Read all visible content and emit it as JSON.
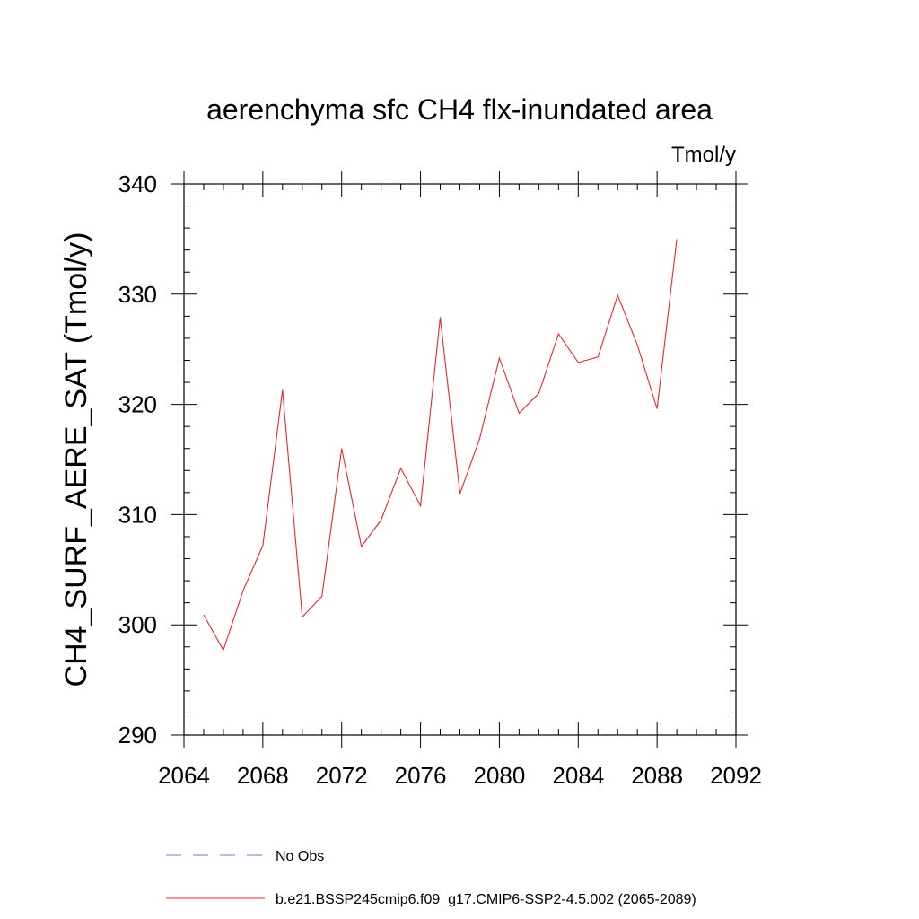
{
  "chart_data": {
    "type": "line",
    "title": "aerenchyma sfc CH4 flx-inundated area",
    "units_label": "Tmol/y",
    "xlabel": "",
    "ylabel": "CH4_SURF_AERE_SAT  (Tmol/y)",
    "xlim": [
      2064,
      2092
    ],
    "ylim": [
      290,
      340
    ],
    "x_ticks": [
      2064,
      2068,
      2072,
      2076,
      2080,
      2084,
      2088,
      2092
    ],
    "y_ticks": [
      290,
      300,
      310,
      320,
      330,
      340
    ],
    "x_minor_step": 1,
    "y_minor_step": 2,
    "grid": false,
    "legend_position": "bottom",
    "series": [
      {
        "name": "b.e21.BSSP245cmip6.f09_g17.CMIP6-SSP2-4.5.002 (2065-2089)",
        "color": "#e8262a",
        "style": "solid",
        "x": [
          2065,
          2066,
          2067,
          2068,
          2069,
          2070,
          2071,
          2072,
          2073,
          2074,
          2075,
          2076,
          2077,
          2078,
          2079,
          2080,
          2081,
          2082,
          2083,
          2084,
          2085,
          2086,
          2087,
          2088,
          2089
        ],
        "values": [
          300.9,
          297.7,
          303.1,
          307.2,
          321.3,
          300.7,
          302.6,
          316.0,
          307.1,
          309.5,
          314.2,
          310.8,
          327.9,
          311.9,
          316.9,
          324.2,
          319.2,
          321.0,
          326.4,
          323.8,
          324.3,
          329.9,
          325.4,
          319.6,
          335.0
        ]
      },
      {
        "name": "No Obs",
        "color": "#7b73c8",
        "style": "dashed",
        "x": [],
        "values": []
      }
    ]
  }
}
